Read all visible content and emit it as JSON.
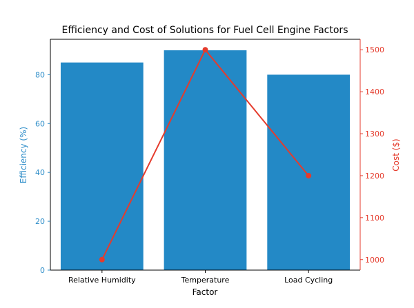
{
  "chart_data": {
    "type": "bar",
    "title": "Efficiency and Cost of Solutions for Fuel Cell Engine Factors",
    "xlabel": "Factor",
    "categories": [
      "Relative Humidity",
      "Temperature",
      "Load Cycling"
    ],
    "series": [
      {
        "name": "Efficiency (%)",
        "type": "bar",
        "axis": "left",
        "values": [
          85,
          90,
          80
        ],
        "color": "#2389c6"
      },
      {
        "name": "Cost ($)",
        "type": "line",
        "axis": "right",
        "values": [
          1000,
          1500,
          1200
        ],
        "color": "#e53b2c"
      }
    ],
    "y_left": {
      "label": "Efficiency (%)",
      "ylim": [
        0,
        94.5
      ],
      "ticks": [
        0,
        20,
        40,
        60,
        80
      ],
      "tick_labels": [
        "0",
        "20",
        "40",
        "60",
        "80"
      ],
      "color": "#2f8ec9"
    },
    "y_right": {
      "label": "Cost ($)",
      "ylim": [
        975,
        1525
      ],
      "ticks": [
        1000,
        1100,
        1200,
        1300,
        1400,
        1500
      ],
      "tick_labels": [
        "1000",
        "1100",
        "1200",
        "1300",
        "1400",
        "1500"
      ],
      "color": "#e53b2c"
    },
    "grid": false,
    "legend": null
  }
}
